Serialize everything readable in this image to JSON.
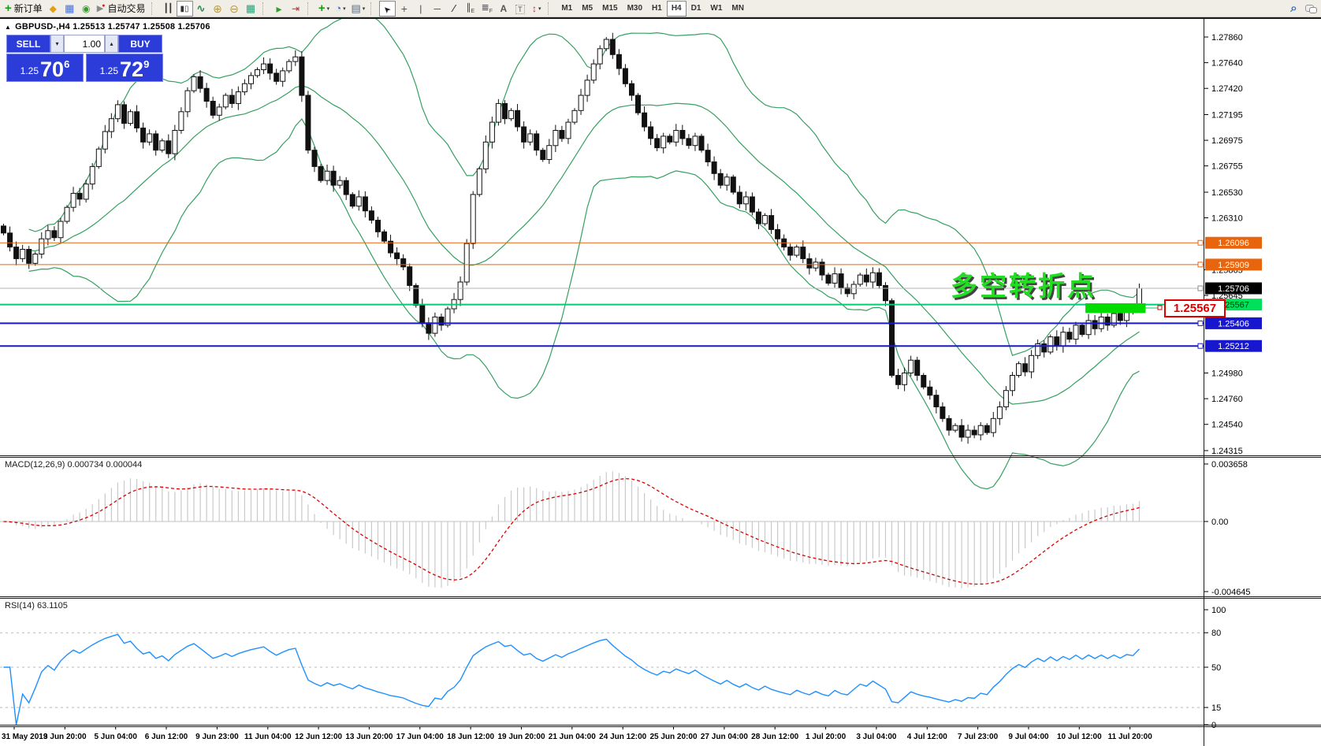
{
  "toolbar": {
    "new_order_label": "新订单",
    "autotrade_label": "自动交易",
    "timeframes": [
      "M1",
      "M5",
      "M15",
      "M30",
      "H1",
      "H4",
      "D1",
      "W1",
      "MN"
    ],
    "active_timeframe": "H4",
    "icons": [
      "new-order-icon",
      "cube-icon",
      "market-window-icon",
      "signal-icon",
      "autotrade-icon",
      "bar-chart-icon",
      "candle-chart-icon",
      "line-chart-icon",
      "zoom-in-icon",
      "zoom-out-icon",
      "tile-windows-icon",
      "auto-scroll-icon",
      "chart-shift-icon",
      "indicators-icon",
      "periods-icon",
      "templates-icon",
      "cursor-icon",
      "crosshair-icon",
      "vertical-line-icon",
      "horizontal-line-icon",
      "trendline-icon",
      "channel-icon",
      "fibonacci-icon",
      "text-icon",
      "text-label-icon",
      "arrows-icon",
      "search-icon",
      "chat-icon"
    ]
  },
  "chart_header": {
    "title": "GBPUSD-,H4  1.25513 1.25747 1.25508 1.25706"
  },
  "trade_panel": {
    "sell_label": "SELL",
    "buy_label": "BUY",
    "volume": "1.00",
    "sell_price": {
      "small": "1.25",
      "big": "70",
      "sup": "6",
      "value": 1.25706
    },
    "buy_price": {
      "small": "1.25",
      "big": "72",
      "sup": "9",
      "value": 1.25729
    }
  },
  "price_axis": {
    "ticks": [
      1.2786,
      1.2764,
      1.2742,
      1.27195,
      1.26975,
      1.26755,
      1.2653,
      1.2631,
      1.25865,
      1.25645,
      1.2498,
      1.2476,
      1.2454,
      1.24315
    ],
    "markers": [
      {
        "value": 1.26096,
        "bg": "#e8650e",
        "fg": "#ffffff"
      },
      {
        "value": 1.25909,
        "bg": "#e8650e",
        "fg": "#ffffff"
      },
      {
        "value": 1.25706,
        "bg": "#000000",
        "fg": "#ffffff"
      },
      {
        "value": 1.25567,
        "bg": "#00e05a",
        "fg": "#00320a"
      },
      {
        "value": 1.25406,
        "bg": "#1717cf",
        "fg": "#ffffff"
      },
      {
        "value": 1.25212,
        "bg": "#1717cf",
        "fg": "#ffffff"
      }
    ]
  },
  "indicators": {
    "macd": {
      "label": "MACD(12,26,9) 0.000734 0.000044",
      "axis": [
        "0.003658",
        "0.00",
        "-0.004645"
      ]
    },
    "rsi": {
      "label": "RSI(14) 63.1105",
      "axis_labels": [
        100,
        80,
        50,
        15,
        0
      ],
      "levels": [
        80,
        50,
        15
      ]
    }
  },
  "annotations": {
    "turning_point": "多空转折点",
    "level_label": "1.25567"
  },
  "time_axis": {
    "labels": [
      "31 May 2019",
      "3 Jun 20:00",
      "5 Jun 04:00",
      "6 Jun 12:00",
      "9 Jun 23:00",
      "11 Jun 04:00",
      "12 Jun 12:00",
      "13 Jun 20:00",
      "17 Jun 04:00",
      "18 Jun 12:00",
      "19 Jun 20:00",
      "21 Jun 04:00",
      "24 Jun 12:00",
      "25 Jun 20:00",
      "27 Jun 04:00",
      "28 Jun 12:00",
      "1 Jul 20:00",
      "3 Jul 04:00",
      "4 Jul 12:00",
      "7 Jul 23:00",
      "9 Jul 04:00",
      "10 Jul 12:00",
      "11 Jul 20:00"
    ]
  },
  "chart_data": {
    "type": "candlestick",
    "symbol": "GBPUSD-",
    "period": "H4",
    "price_axis_range": {
      "top": 1.2786,
      "bottom": 1.24315
    },
    "closes": [
      1.2618,
      1.2606,
      1.2596,
      1.2604,
      1.2592,
      1.26,
      1.2613,
      1.262,
      1.2614,
      1.2628,
      1.264,
      1.2652,
      1.2647,
      1.266,
      1.2675,
      1.269,
      1.2705,
      1.2716,
      1.2728,
      1.2712,
      1.2722,
      1.2708,
      1.2696,
      1.2703,
      1.2689,
      1.2697,
      1.2686,
      1.2706,
      1.2722,
      1.274,
      1.2752,
      1.2742,
      1.2731,
      1.2719,
      1.2726,
      1.2736,
      1.2729,
      1.2739,
      1.2746,
      1.2753,
      1.2758,
      1.2763,
      1.2755,
      1.2748,
      1.2757,
      1.2765,
      1.2769,
      1.2736,
      1.2689,
      1.2675,
      1.2663,
      1.2671,
      1.2659,
      1.2663,
      1.2651,
      1.2641,
      1.2649,
      1.2637,
      1.2629,
      1.2619,
      1.2611,
      1.2601,
      1.2596,
      1.2589,
      1.2573,
      1.2556,
      1.2541,
      1.2532,
      1.2546,
      1.2539,
      1.2553,
      1.2561,
      1.2576,
      1.2609,
      1.2651,
      1.2673,
      1.2696,
      1.2713,
      1.2729,
      1.2716,
      1.2723,
      1.2709,
      1.2696,
      1.2703,
      1.2689,
      1.2681,
      1.2693,
      1.2706,
      1.2699,
      1.2713,
      1.2723,
      1.2736,
      1.2749,
      1.2763,
      1.2776,
      1.2784,
      1.2771,
      1.2759,
      1.2746,
      1.2736,
      1.2721,
      1.2709,
      1.2699,
      1.2691,
      1.2701,
      1.2696,
      1.2706,
      1.2699,
      1.2693,
      1.2701,
      1.2689,
      1.2679,
      1.2669,
      1.2659,
      1.2666,
      1.2653,
      1.2643,
      1.2649,
      1.2636,
      1.2626,
      1.2633,
      1.2621,
      1.2613,
      1.2606,
      1.2599,
      1.2606,
      1.2596,
      1.2588,
      1.2593,
      1.2582,
      1.2575,
      1.2583,
      1.2571,
      1.2566,
      1.2574,
      1.2582,
      1.2576,
      1.2584,
      1.2573,
      1.256,
      1.2496,
      1.2488,
      1.2498,
      1.2509,
      1.2496,
      1.2486,
      1.2479,
      1.2469,
      1.2459,
      1.2449,
      1.2453,
      1.2443,
      1.2449,
      1.2445,
      1.2453,
      1.2447,
      1.2459,
      1.2469,
      1.2483,
      1.2496,
      1.2506,
      1.2499,
      1.2513,
      1.2523,
      1.2516,
      1.2529,
      1.2521,
      1.2533,
      1.2527,
      1.2539,
      1.2531,
      1.2543,
      1.2536,
      1.2546,
      1.2539,
      1.2549,
      1.2543,
      1.2553,
      1.2551,
      1.25706
    ],
    "last_candle": {
      "open": 1.25513,
      "high": 1.25747,
      "low": 1.25508,
      "close": 1.25706
    },
    "bollinger": {
      "period": 20,
      "deviation": 2
    },
    "macd_params": {
      "fast": 12,
      "slow": 26,
      "signal": 9,
      "current_macd": 0.000734,
      "current_signal": 4.4e-05
    },
    "rsi_params": {
      "period": 14,
      "current": 63.1105
    },
    "hlines": [
      {
        "price": 1.26096,
        "color": "#e8650e",
        "width": 1
      },
      {
        "price": 1.25909,
        "color": "#e8650e",
        "width": 1
      },
      {
        "price": 1.25706,
        "color": "#b4b4b4",
        "width": 1
      },
      {
        "price": 1.25567,
        "color": "#00cd71",
        "width": 2
      },
      {
        "price": 1.25406,
        "color": "#1717cf",
        "width": 2
      },
      {
        "price": 1.25212,
        "color": "#1717cf",
        "width": 2
      }
    ],
    "green_box": {
      "from_bar": 171,
      "to_bar": 179,
      "top": 1.25578,
      "bottom": 1.25495
    },
    "colors": {
      "bands": "#35a060",
      "green_box": "#00dc00",
      "green_line": "#00cd71",
      "macd_signal": "#dd0000",
      "histogram": "#c9c9c9",
      "rsi_line": "#1e90ff",
      "panel_blue": "#2b3cd9",
      "orange_line": "#e8650e",
      "blue_line": "#1717cf",
      "annotation_green": "#23dd23",
      "callout_red": "#dd0000"
    }
  }
}
